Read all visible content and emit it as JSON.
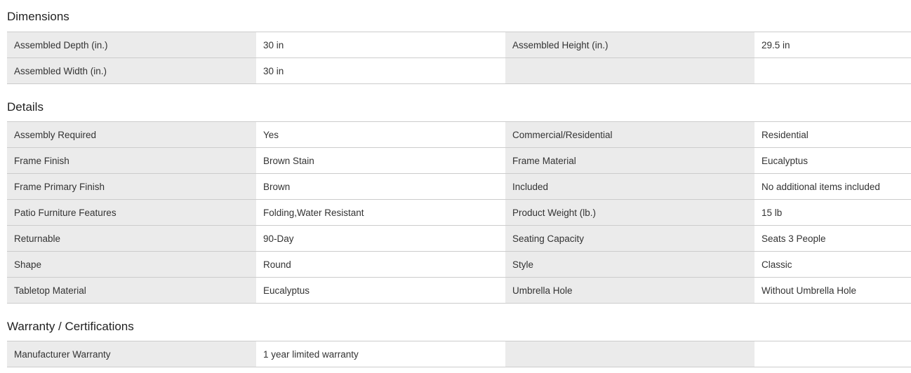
{
  "sections": [
    {
      "title": "Dimensions",
      "rows": [
        [
          "Assembled Depth (in.)",
          "30 in",
          "Assembled Height (in.)",
          "29.5 in"
        ],
        [
          "Assembled Width (in.)",
          "30 in",
          "",
          ""
        ]
      ]
    },
    {
      "title": "Details",
      "rows": [
        [
          "Assembly Required",
          "Yes",
          "Commercial/Residential",
          "Residential"
        ],
        [
          "Frame Finish",
          "Brown Stain",
          "Frame Material",
          "Eucalyptus"
        ],
        [
          "Frame Primary Finish",
          "Brown",
          "Included",
          "No additional items included"
        ],
        [
          "Patio Furniture Features",
          "Folding,Water Resistant",
          "Product Weight (lb.)",
          "15 lb"
        ],
        [
          "Returnable",
          "90-Day",
          "Seating Capacity",
          "Seats 3 People"
        ],
        [
          "Shape",
          "Round",
          "Style",
          "Classic"
        ],
        [
          "Tabletop Material",
          "Eucalyptus",
          "Umbrella Hole",
          "Without Umbrella Hole"
        ]
      ]
    },
    {
      "title": "Warranty / Certifications",
      "rows": [
        [
          "Manufacturer Warranty",
          "1 year limited warranty",
          "",
          ""
        ]
      ]
    }
  ]
}
